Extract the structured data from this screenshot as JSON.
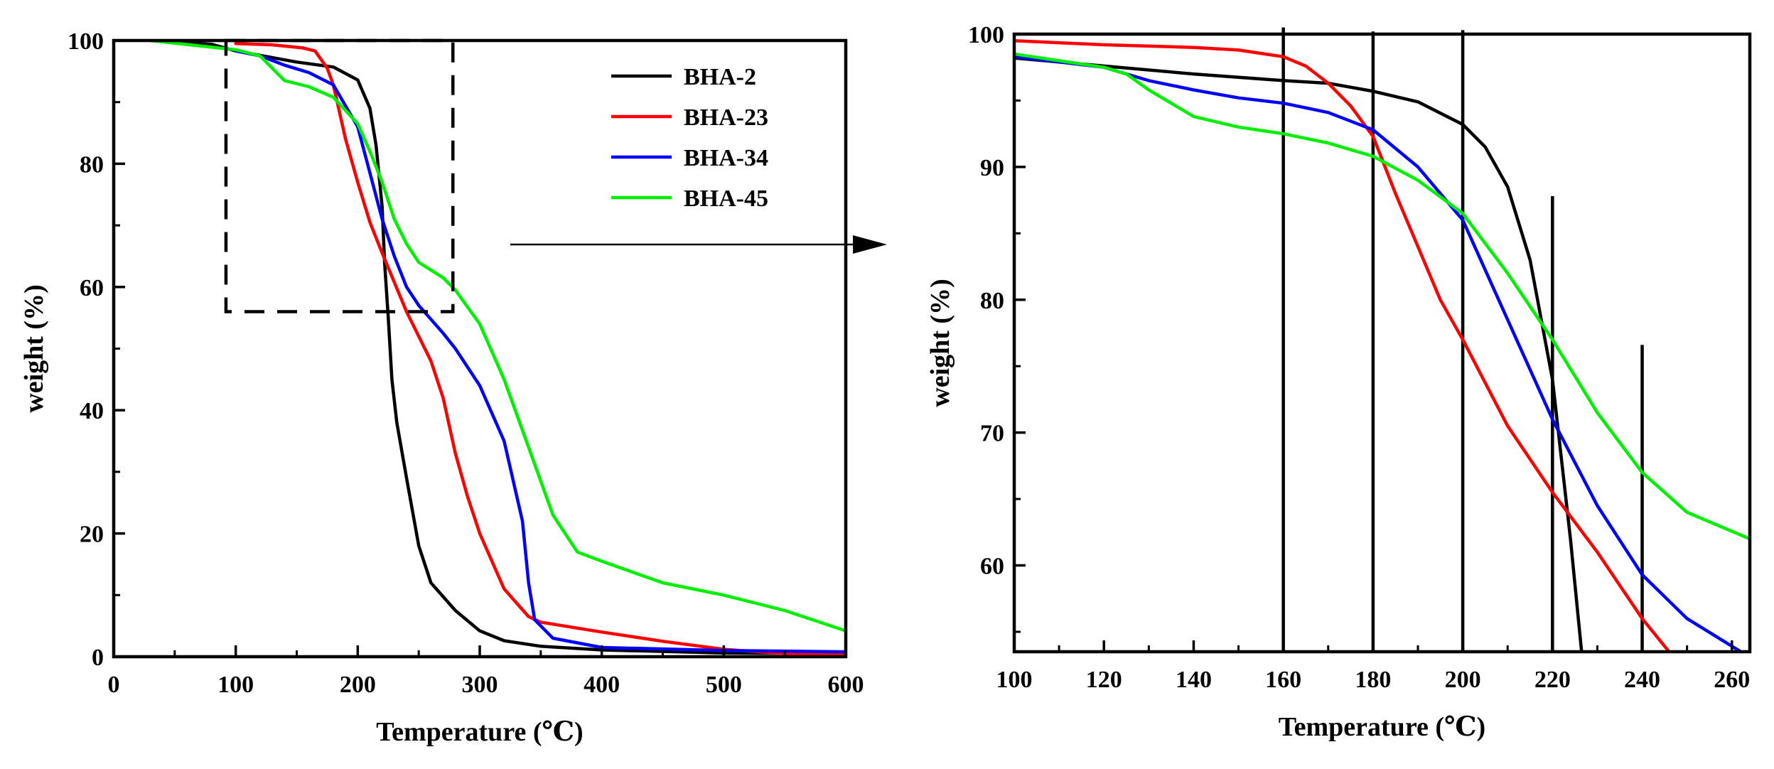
{
  "chart_data": [
    {
      "type": "line",
      "title": "",
      "xlabel": "Temperature (℃)",
      "ylabel": "weight (%)",
      "xlim": [
        0,
        600
      ],
      "ylim": [
        0,
        100
      ],
      "xticks": [
        0,
        100,
        200,
        300,
        400,
        500,
        600
      ],
      "yticks": [
        0,
        20,
        40,
        60,
        80,
        100
      ],
      "legend_position": "top-right",
      "series": [
        {
          "name": "BHA-2",
          "color": "#000000",
          "points": [
            [
              30,
              100
            ],
            [
              80,
              99.4
            ],
            [
              100,
              98.3
            ],
            [
              150,
              96.5
            ],
            [
              180,
              95.7
            ],
            [
              200,
              93.6
            ],
            [
              210,
              89
            ],
            [
              215,
              83
            ],
            [
              220,
              73
            ],
            [
              222,
              64
            ],
            [
              225,
              55
            ],
            [
              228,
              45
            ],
            [
              232,
              38
            ],
            [
              240,
              29
            ],
            [
              250,
              18
            ],
            [
              260,
              12
            ],
            [
              280,
              7.5
            ],
            [
              300,
              4.2
            ],
            [
              320,
              2.6
            ],
            [
              350,
              1.7
            ],
            [
              400,
              1.1
            ],
            [
              500,
              0.6
            ],
            [
              600,
              0.5
            ]
          ]
        },
        {
          "name": "BHA-23",
          "color": "#ff0000",
          "points": [
            [
              100,
              99.5
            ],
            [
              130,
              99.3
            ],
            [
              155,
              98.8
            ],
            [
              165,
              98.3
            ],
            [
              175,
              95.5
            ],
            [
              180,
              92.8
            ],
            [
              190,
              84
            ],
            [
              200,
              77
            ],
            [
              210,
              70.5
            ],
            [
              220,
              65.5
            ],
            [
              240,
              56
            ],
            [
              250,
              52
            ],
            [
              260,
              48
            ],
            [
              270,
              42
            ],
            [
              280,
              33
            ],
            [
              290,
              26
            ],
            [
              300,
              20
            ],
            [
              320,
              11
            ],
            [
              340,
              6.5
            ],
            [
              350,
              5.6
            ],
            [
              400,
              4
            ],
            [
              450,
              2.5
            ],
            [
              500,
              1.2
            ],
            [
              550,
              0.5
            ],
            [
              600,
              0.5
            ]
          ]
        },
        {
          "name": "BHA-34",
          "color": "#0000ff",
          "points": [
            [
              100,
              98.3
            ],
            [
              120,
              97.5
            ],
            [
              140,
              96
            ],
            [
              160,
              94.8
            ],
            [
              180,
              92.8
            ],
            [
              200,
              86
            ],
            [
              210,
              78.5
            ],
            [
              220,
              71
            ],
            [
              230,
              65
            ],
            [
              240,
              60
            ],
            [
              250,
              57
            ],
            [
              270,
              52.5
            ],
            [
              280,
              50
            ],
            [
              300,
              44
            ],
            [
              320,
              35
            ],
            [
              335,
              22
            ],
            [
              340,
              12
            ],
            [
              345,
              6
            ],
            [
              360,
              3
            ],
            [
              400,
              1.5
            ],
            [
              500,
              1
            ],
            [
              600,
              0.8
            ]
          ]
        },
        {
          "name": "BHA-45",
          "color": "#00ee00",
          "points": [
            [
              30,
              100
            ],
            [
              100,
              98.5
            ],
            [
              120,
              97.5
            ],
            [
              140,
              93.5
            ],
            [
              160,
              92.5
            ],
            [
              180,
              90.8
            ],
            [
              200,
              86.5
            ],
            [
              210,
              82
            ],
            [
              220,
              77
            ],
            [
              230,
              71
            ],
            [
              240,
              67
            ],
            [
              250,
              64
            ],
            [
              270,
              61.5
            ],
            [
              280,
              59.5
            ],
            [
              300,
              54
            ],
            [
              320,
              45
            ],
            [
              340,
              34
            ],
            [
              360,
              23
            ],
            [
              380,
              17
            ],
            [
              400,
              15.5
            ],
            [
              450,
              12
            ],
            [
              500,
              10
            ],
            [
              550,
              7.5
            ],
            [
              600,
              4.2
            ]
          ]
        }
      ],
      "annotations": {
        "zoom_box": {
          "x_range": [
            92,
            278
          ],
          "y_range": [
            56,
            100
          ]
        },
        "arrow": "points to zoomed view"
      }
    },
    {
      "type": "line",
      "title": "",
      "xlabel": "Temperature (℃)",
      "ylabel": "weight (%)",
      "xlim": [
        100,
        264
      ],
      "ylim": [
        53.5,
        100
      ],
      "xticks": [
        100,
        120,
        140,
        160,
        180,
        200,
        220,
        240,
        260
      ],
      "yticks": [
        60,
        70,
        80,
        90,
        100
      ],
      "series": [
        {
          "name": "BHA-2",
          "color": "#000000",
          "points": [
            [
              100,
              98.2
            ],
            [
              120,
              97.6
            ],
            [
              140,
              97
            ],
            [
              160,
              96.5
            ],
            [
              170,
              96.3
            ],
            [
              180,
              95.7
            ],
            [
              190,
              94.9
            ],
            [
              200,
              93.2
            ],
            [
              205,
              91.5
            ],
            [
              210,
              88.5
            ],
            [
              215,
              83
            ],
            [
              220,
              74
            ],
            [
              224,
              62
            ],
            [
              226.5,
              53.5
            ]
          ]
        },
        {
          "name": "BHA-23",
          "color": "#ff0000",
          "points": [
            [
              100,
              99.5
            ],
            [
              120,
              99.2
            ],
            [
              140,
              99
            ],
            [
              150,
              98.8
            ],
            [
              160,
              98.3
            ],
            [
              165,
              97.6
            ],
            [
              170,
              96.3
            ],
            [
              175,
              94.6
            ],
            [
              180,
              92.3
            ],
            [
              185,
              88
            ],
            [
              190,
              84
            ],
            [
              195,
              80
            ],
            [
              200,
              77
            ],
            [
              210,
              70.5
            ],
            [
              220,
              65.5
            ],
            [
              230,
              61
            ],
            [
              240,
              56
            ],
            [
              246,
              53.5
            ]
          ]
        },
        {
          "name": "BHA-34",
          "color": "#0000ff",
          "points": [
            [
              100,
              98.3
            ],
            [
              110,
              97.9
            ],
            [
              120,
              97.5
            ],
            [
              130,
              96.5
            ],
            [
              140,
              95.8
            ],
            [
              150,
              95.2
            ],
            [
              160,
              94.8
            ],
            [
              170,
              94.1
            ],
            [
              180,
              92.8
            ],
            [
              190,
              90
            ],
            [
              200,
              86
            ],
            [
              210,
              78.5
            ],
            [
              220,
              71
            ],
            [
              230,
              64.5
            ],
            [
              240,
              59.3
            ],
            [
              250,
              56
            ],
            [
              262,
              53.5
            ]
          ]
        },
        {
          "name": "BHA-45",
          "color": "#00ee00",
          "points": [
            [
              100,
              98.5
            ],
            [
              110,
              98
            ],
            [
              120,
              97.5
            ],
            [
              125,
              97
            ],
            [
              130,
              95.8
            ],
            [
              140,
              93.8
            ],
            [
              150,
              93
            ],
            [
              160,
              92.5
            ],
            [
              170,
              91.8
            ],
            [
              180,
              90.8
            ],
            [
              190,
              89
            ],
            [
              200,
              86.5
            ],
            [
              210,
              82
            ],
            [
              220,
              77
            ],
            [
              230,
              71.5
            ],
            [
              240,
              67
            ],
            [
              250,
              64
            ],
            [
              264,
              62
            ]
          ]
        }
      ],
      "reference_lines": [
        {
          "x": 160,
          "y_top": 100.5
        },
        {
          "x": 180,
          "y_top": 100.2
        },
        {
          "x": 200,
          "y_top": 100.3
        },
        {
          "x": 220,
          "y_top": 87.8
        },
        {
          "x": 240,
          "y_top": 76.6
        }
      ]
    }
  ]
}
